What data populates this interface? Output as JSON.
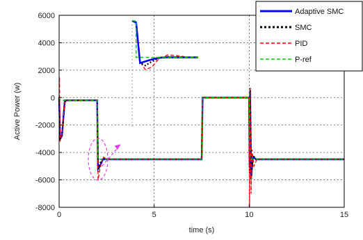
{
  "chart_data": {
    "type": "line",
    "xlabel": "time (s)",
    "ylabel": "Active Power (w)",
    "xlim": [
      0,
      15
    ],
    "ylim": [
      -8000,
      6000
    ],
    "xticks": [
      0,
      5,
      10,
      15
    ],
    "yticks": [
      6000,
      4000,
      2000,
      0,
      -2000,
      -4000,
      -6000,
      -8000
    ],
    "grid": true,
    "legend_position": "top-right",
    "series": [
      {
        "name": "Adaptive SMC",
        "color": "#0000ff",
        "style": "solid",
        "x": [
          0,
          0.05,
          0.15,
          0.3,
          0.5,
          2.0,
          2.05,
          2.15,
          2.3,
          2.5,
          7.5,
          7.55,
          7.65,
          7.8,
          10.0,
          10.02,
          10.05,
          10.1,
          10.2,
          10.35,
          15
        ],
        "y": [
          0,
          -3000,
          -2800,
          -200,
          -200,
          -200,
          -5200,
          -5000,
          -4500,
          -4500,
          -4500,
          0,
          0,
          0,
          0,
          -5000,
          500,
          -5800,
          -4300,
          -4500,
          -4500
        ]
      },
      {
        "name": "SMC",
        "color": "#000000",
        "style": "dotted",
        "x": [
          0,
          0.05,
          0.15,
          0.3,
          0.5,
          2.0,
          2.05,
          2.15,
          2.3,
          2.5,
          7.5,
          7.55,
          7.65,
          7.8,
          10.0,
          10.02,
          10.05,
          10.1,
          10.2,
          10.35,
          15
        ],
        "y": [
          0,
          -3100,
          -2700,
          -300,
          -200,
          -200,
          -5400,
          -4800,
          -4400,
          -4500,
          -4500,
          0,
          0,
          0,
          0,
          -5500,
          700,
          -6000,
          -4200,
          -4500,
          -4500
        ]
      },
      {
        "name": "PID",
        "color": "#ff0000",
        "style": "dashed",
        "x": [
          0,
          0.02,
          0.05,
          0.15,
          0.3,
          0.5,
          2.0,
          2.05,
          2.15,
          2.3,
          2.5,
          7.5,
          7.55,
          7.65,
          7.8,
          10.0,
          10.02,
          10.05,
          10.1,
          10.15,
          10.25,
          10.4,
          15
        ],
        "y": [
          0,
          1500,
          -3200,
          -2600,
          -300,
          -200,
          -200,
          -6000,
          -5200,
          -4300,
          -4500,
          -4500,
          0,
          0,
          0,
          0,
          -8000,
          700,
          -7000,
          -3800,
          -5000,
          -4500,
          -4500
        ]
      },
      {
        "name": "P-ref",
        "color": "#00cc00",
        "style": "dashed",
        "x": [
          0,
          0.05,
          2.0,
          2.05,
          7.5,
          7.55,
          10.0,
          10.05,
          15
        ],
        "y": [
          0,
          -200,
          -200,
          -4500,
          -4500,
          0,
          0,
          -4500,
          -4500
        ]
      }
    ],
    "inset": {
      "x_range": [
        2.0,
        2.5
      ],
      "y_range": [
        -6000,
        0
      ],
      "series": [
        {
          "x": [
            2.0,
            2.03,
            2.06,
            2.1,
            2.15,
            2.2,
            2.27,
            2.35,
            2.42,
            2.5
          ],
          "y": [
            0,
            -200,
            -5200,
            -5000,
            -4750,
            -4550,
            -4480,
            -4500,
            -4500,
            -4500
          ]
        },
        {
          "x": [
            2.0,
            2.03,
            2.06,
            2.1,
            2.15,
            2.2,
            2.27,
            2.35,
            2.42,
            2.5
          ],
          "y": [
            0,
            -200,
            -5200,
            -5500,
            -5000,
            -4600,
            -4430,
            -4480,
            -4500,
            -4500
          ]
        },
        {
          "x": [
            2.0,
            2.03,
            2.06,
            2.1,
            2.15,
            2.2,
            2.27,
            2.35,
            2.42,
            2.5
          ],
          "y": [
            0,
            -200,
            -5000,
            -6000,
            -5700,
            -4700,
            -4200,
            -4300,
            -4500,
            -4500
          ]
        },
        {
          "x": [
            2.0,
            2.03,
            2.03,
            2.5
          ],
          "y": [
            0,
            0,
            -4500,
            -4500
          ]
        }
      ]
    }
  }
}
